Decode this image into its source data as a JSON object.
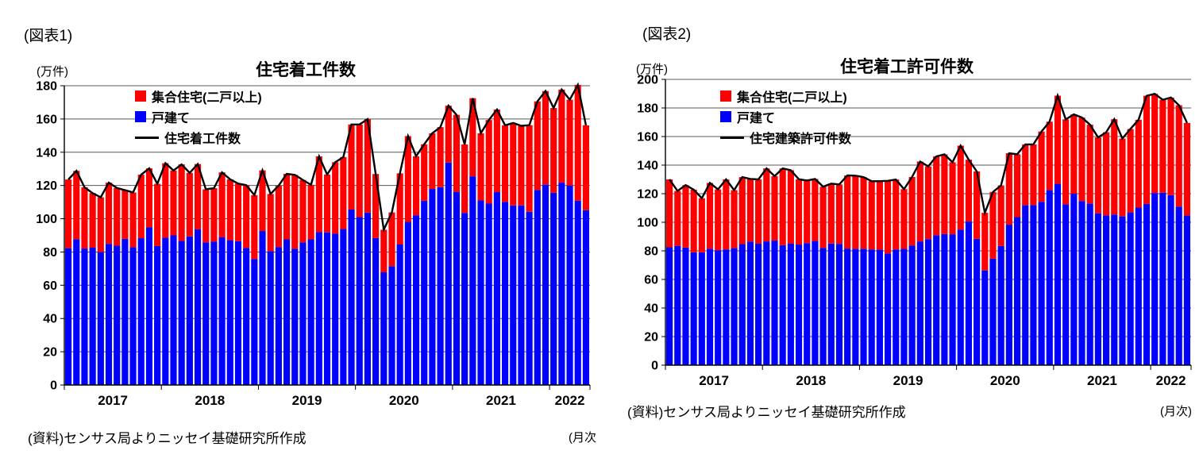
{
  "background": "#ffffff",
  "chart_data": [
    {
      "type": "bar",
      "subtype": "stacked-bar-with-line",
      "figure_label": "(図表1)",
      "title": "住宅着工件数",
      "unit_label": "(万件)",
      "source": "(資料)センサス局よりニッセイ基礎研究所作成",
      "freq_label": "(月次",
      "ylim": [
        0,
        180
      ],
      "ytick": 20,
      "grid_color": "#595959",
      "axis_color": "#000000",
      "legend": [
        {
          "label": "集合住宅(二戸以上)",
          "color": "#ff0000",
          "marker": "box"
        },
        {
          "label": "戸建て",
          "color": "#0000ff",
          "marker": "box"
        },
        {
          "label": "住宅着工件数",
          "color": "#000000",
          "marker": "line"
        }
      ],
      "x_start": "2017-01",
      "x_freq": "monthly",
      "years": [
        {
          "label": "2017",
          "months": 12
        },
        {
          "label": "2018",
          "months": 12
        },
        {
          "label": "2019",
          "months": 12
        },
        {
          "label": "2020",
          "months": 12
        },
        {
          "label": "2021",
          "months": 12
        },
        {
          "label": "2022",
          "months": 5
        }
      ],
      "series": {
        "single_family": {
          "name": "戸建て",
          "color": "#0000ff",
          "values": [
            82.3,
            87.7,
            82.1,
            82.6,
            80.0,
            84.9,
            83.8,
            87.9,
            82.9,
            88.3,
            94.8,
            83.6,
            88.6,
            90.0,
            86.7,
            89.4,
            93.6,
            85.8,
            86.2,
            88.8,
            87.1,
            86.5,
            82.4,
            75.8,
            92.6,
            80.5,
            83.0,
            87.6,
            82.0,
            85.8,
            87.6,
            91.9,
            91.8,
            91.0,
            93.8,
            105.5,
            101.0,
            103.7,
            88.4,
            67.8,
            71.5,
            84.5,
            98.1,
            102.1,
            110.8,
            117.9,
            119.0,
            133.8,
            116.2,
            103.5,
            125.5,
            111.0,
            109.1,
            116.0,
            110.1,
            108.0,
            108.0,
            104.2,
            117.3,
            120.5,
            115.6,
            121.7,
            120.0,
            110.9,
            105.1
          ]
        },
        "multi_family": {
          "name": "集合住宅(二戸以上)",
          "color": "#ff0000",
          "values": [
            41.3,
            41.1,
            36.8,
            32.8,
            32.9,
            36.8,
            34.7,
            29.3,
            32.9,
            38.2,
            35.5,
            37.4,
            44.8,
            39.0,
            46.0,
            38.2,
            39.3,
            31.9,
            32.2,
            39.1,
            36.6,
            34.6,
            37.8,
            38.4,
            36.5,
            34.4,
            36.9,
            39.4,
            44.4,
            37.5,
            32.8,
            45.6,
            34.8,
            43.0,
            43.3,
            51.2,
            55.7,
            56.2,
            38.5,
            25.6,
            32.3,
            42.8,
            51.6,
            35.5,
            34.0,
            33.5,
            36.1,
            34.2,
            46.3,
            41.2,
            47.0,
            40.4,
            50.3,
            49.7,
            46.1,
            49.6,
            47.9,
            52.1,
            53.3,
            56.3,
            51.0,
            56.0,
            51.6,
            69.6,
            51.1
          ]
        },
        "total_line": {
          "name": "住宅着工件数",
          "color": "#000000",
          "values": [
            123.6,
            128.8,
            118.9,
            115.4,
            112.9,
            121.7,
            118.5,
            117.2,
            115.8,
            126.5,
            130.3,
            121.0,
            133.4,
            129.0,
            132.7,
            127.6,
            132.9,
            117.7,
            118.4,
            127.9,
            123.7,
            121.1,
            120.2,
            114.2,
            129.1,
            114.9,
            119.9,
            127.0,
            126.4,
            123.3,
            120.4,
            137.5,
            126.6,
            134.0,
            137.1,
            156.7,
            156.7,
            159.9,
            126.9,
            93.4,
            103.8,
            127.3,
            149.7,
            137.6,
            144.8,
            151.4,
            155.1,
            168.0,
            162.5,
            144.7,
            172.5,
            151.4,
            159.4,
            165.7,
            156.2,
            157.6,
            155.9,
            156.3,
            170.6,
            176.8,
            166.6,
            177.7,
            171.6,
            180.5,
            156.2
          ]
        }
      }
    },
    {
      "type": "bar",
      "subtype": "stacked-bar-with-line",
      "figure_label": "(図表2)",
      "title": "住宅着工許可件数",
      "unit_label": "(万件)",
      "source": "(資料)センサス局よりニッセイ基礎研究所作成",
      "freq_label": "(月次)",
      "ylim": [
        0,
        200
      ],
      "ytick": 20,
      "grid_color": "#595959",
      "axis_color": "#000000",
      "legend": [
        {
          "label": "集合住宅(二戸以上)",
          "color": "#ff0000",
          "marker": "box"
        },
        {
          "label": "戸建て",
          "color": "#0000ff",
          "marker": "box"
        },
        {
          "label": "住宅建築許可件数",
          "color": "#000000",
          "marker": "line"
        }
      ],
      "x_start": "2017-01",
      "x_freq": "monthly",
      "years": [
        {
          "label": "2017",
          "months": 12
        },
        {
          "label": "2018",
          "months": 12
        },
        {
          "label": "2019",
          "months": 12
        },
        {
          "label": "2020",
          "months": 12
        },
        {
          "label": "2021",
          "months": 12
        },
        {
          "label": "2022",
          "months": 5
        }
      ],
      "series": {
        "single_family": {
          "name": "戸建て",
          "color": "#0000ff",
          "values": [
            82.5,
            83.5,
            82.3,
            79.0,
            79.0,
            81.5,
            80.5,
            81.0,
            81.9,
            84.7,
            86.5,
            85.0,
            86.6,
            87.2,
            84.0,
            85.0,
            84.4,
            85.4,
            86.9,
            82.0,
            85.1,
            84.9,
            81.6,
            81.5,
            81.5,
            81.0,
            80.8,
            78.2,
            81.0,
            81.4,
            83.8,
            86.6,
            88.2,
            90.9,
            91.8,
            91.6,
            94.9,
            100.5,
            88.4,
            66.3,
            74.5,
            83.4,
            98.3,
            103.6,
            111.9,
            112.0,
            114.3,
            122.6,
            126.9,
            112.6,
            119.9,
            114.9,
            113.0,
            106.3,
            104.8,
            105.4,
            104.1,
            106.9,
            110.3,
            112.8,
            120.5,
            120.7,
            119.0,
            111.0,
            104.8
          ]
        },
        "multi_family": {
          "name": "集合住宅(二戸以上)",
          "color": "#ff0000",
          "values": [
            47.5,
            38.4,
            43.7,
            43.8,
            37.8,
            46.0,
            42.5,
            49.0,
            40.6,
            46.9,
            43.8,
            45.0,
            51.1,
            45.1,
            53.7,
            51.4,
            45.7,
            43.8,
            43.4,
            42.9,
            41.9,
            41.6,
            51.2,
            51.1,
            50.1,
            47.7,
            48.0,
            50.8,
            48.9,
            41.8,
            47.9,
            55.9,
            50.9,
            55.2,
            55.7,
            50.4,
            58.7,
            43.3,
            47.2,
            40.3,
            46.7,
            42.4,
            50.0,
            44.0,
            42.6,
            42.5,
            49.2,
            47.8,
            61.7,
            59.4,
            55.6,
            58.4,
            55.3,
            53.1,
            58.2,
            66.7,
            54.5,
            58.4,
            61.4,
            75.7,
            69.4,
            65.0,
            68.3,
            70.9,
            64.7
          ]
        },
        "total_line": {
          "name": "住宅建築許可件数",
          "color": "#000000",
          "values": [
            130.0,
            121.9,
            126.0,
            122.8,
            116.8,
            127.5,
            123.0,
            130.0,
            122.5,
            131.6,
            130.3,
            130.0,
            137.7,
            132.3,
            137.7,
            136.4,
            130.1,
            129.2,
            130.3,
            124.9,
            127.0,
            126.5,
            132.8,
            132.6,
            131.6,
            128.7,
            128.8,
            129.0,
            129.9,
            123.2,
            131.7,
            142.5,
            139.1,
            146.1,
            147.5,
            142.0,
            153.6,
            143.8,
            135.6,
            106.6,
            121.2,
            125.8,
            148.3,
            147.6,
            154.5,
            154.5,
            163.5,
            170.4,
            188.6,
            172.0,
            175.5,
            173.3,
            168.3,
            159.4,
            163.0,
            172.1,
            158.6,
            165.3,
            171.7,
            188.5,
            189.9,
            185.7,
            187.3,
            181.9,
            169.5
          ]
        }
      }
    }
  ]
}
